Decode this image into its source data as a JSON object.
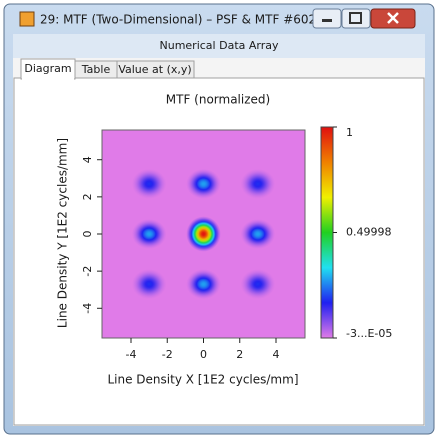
{
  "window": {
    "title": "29: MTF (Two-Dimensional) – PSF & MTF #602",
    "subtitle": "Numerical Data Array",
    "tabs": [
      "Diagram",
      "Table",
      "Value at (x,y)"
    ]
  },
  "chart_data": {
    "type": "heatmap",
    "title": "MTF (normalized)",
    "x_label": "Line Density X [1E2 cycles/mm]",
    "y_label": "Line Density Y [1E2 cycles/mm]",
    "x": [
      0,
      -3,
      3,
      0,
      0,
      -3,
      3,
      -3,
      3
    ],
    "y": [
      0,
      0,
      0,
      2.7,
      -2.7,
      2.7,
      2.7,
      -2.7,
      -2.7
    ],
    "values": [
      1,
      0.28,
      0.28,
      0.28,
      0.28,
      0.18,
      0.18,
      0.18,
      0.18
    ],
    "xlim": [
      -5.6,
      5.6
    ],
    "ylim": [
      -5.6,
      5.6
    ],
    "xticks": [
      -4,
      -2,
      0,
      2,
      4
    ],
    "yticks": [
      -4,
      -2,
      0,
      2,
      4
    ],
    "zlim": [
      -3e-05,
      1
    ],
    "zticks": [
      {
        "value": -3e-05,
        "label": "-3...E-05"
      },
      0.49998,
      1
    ],
    "colorscale": [
      "#e07be8",
      "#2020f0",
      "#20e0f0",
      "#20d020",
      "#f0f000",
      "#f08000",
      "#e01010"
    ]
  }
}
